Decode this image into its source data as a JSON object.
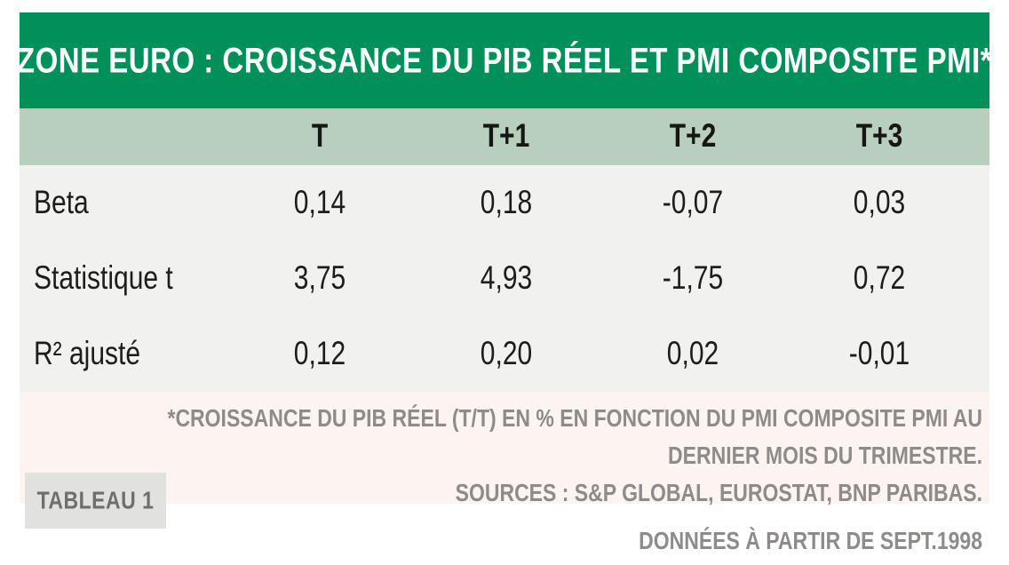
{
  "title": "ZONE EURO : CROISSANCE DU PIB RÉEL ET PMI COMPOSITE PMI*",
  "table": {
    "columns": [
      "T",
      "T+1",
      "T+2",
      "T+3"
    ],
    "rows": [
      {
        "label": "Beta",
        "values": [
          "0,14",
          "0,18",
          "-0,07",
          "0,03"
        ]
      },
      {
        "label": "Statistique t",
        "values": [
          "3,75",
          "4,93",
          "-1,75",
          "0,72"
        ]
      },
      {
        "label": "R² ajusté",
        "values": [
          "0,12",
          "0,20",
          "0,02",
          "-0,01"
        ]
      }
    ]
  },
  "footnote": {
    "line1": "*CROISSANCE DU PIB RÉEL (T/T) EN % EN FONCTION DU PMI COMPOSITE PMI AU",
    "line2": "DERNIER MOIS DU TRIMESTRE."
  },
  "sources": "SOURCES : S&P GLOBAL, EUROSTAT, BNP PARIBAS.",
  "data_note": "DONNÉES À PARTIR DE SEPT.1998",
  "badge": "TABLEAU 1",
  "colors": {
    "header_green": "#00915a",
    "column_header_green": "#b7cfbc",
    "body_gray": "#f1f1ef",
    "footnote_pink": "#fcf4f1",
    "footer_text_gray": "#8e8b8a",
    "badge_gray": "#e1e1e0",
    "text_dark": "#1d1d1b"
  },
  "chart_data": {
    "type": "table",
    "title": "ZONE EURO : CROISSANCE DU PIB RÉEL ET PMI COMPOSITE PMI*",
    "columns": [
      "",
      "T",
      "T+1",
      "T+2",
      "T+3"
    ],
    "rows": [
      [
        "Beta",
        0.14,
        0.18,
        -0.07,
        0.03
      ],
      [
        "Statistique t",
        3.75,
        4.93,
        -1.75,
        0.72
      ],
      [
        "R² ajusté",
        0.12,
        0.2,
        0.02,
        -0.01
      ]
    ],
    "footnote": "*Croissance du PIB réel (T/T) en % en fonction du PMI Composite PMI au dernier mois du trimestre.",
    "sources": "S&P Global, Eurostat, BNP Paribas",
    "data_start": "Sept. 1998",
    "figure_label": "Tableau 1"
  }
}
